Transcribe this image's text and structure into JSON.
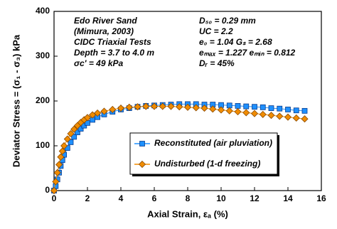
{
  "chart_data": {
    "type": "line",
    "x_label": "Axial Strain, εₐ (%)",
    "y_label": "Deviator Stress = (σ₁ - σ₃)  kPa",
    "xlim": [
      0,
      16
    ],
    "xticks": [
      0,
      2,
      4,
      6,
      8,
      10,
      12,
      14,
      16
    ],
    "ylim": [
      0,
      400
    ],
    "yticks": [
      0,
      100,
      200,
      300,
      400
    ],
    "grid": false,
    "legend_loc": "lower center",
    "annotations": [
      {
        "lines": [
          "Edo River Sand",
          "(Mimura, 2003)",
          "CIDC Triaxial Tests",
          "Depth = 3.7 to 4.0 m",
          "σc' = 49 kPa"
        ]
      },
      {
        "lines": [
          "D₅₀ = 0.29 mm",
          "UC = 2.2",
          "e₀ = 1.04    Gₛ = 2.68",
          "eₘₐₓ = 1.227  eₘᵢₙ = 0.812",
          "Dᵣ = 45%"
        ]
      }
    ],
    "series": [
      {
        "name": "Reconstituted (air pluviation)",
        "color": "#1e90ff",
        "marker": "square",
        "x": [
          0,
          0.1,
          0.2,
          0.3,
          0.4,
          0.5,
          0.6,
          0.8,
          1.0,
          1.2,
          1.4,
          1.6,
          1.8,
          2.0,
          2.3,
          2.6,
          3.0,
          3.5,
          4,
          4.5,
          5,
          5.5,
          6,
          6.5,
          7,
          7.5,
          8,
          8.5,
          9,
          9.5,
          10,
          10.5,
          11,
          11.5,
          12,
          12.5,
          13,
          13.5,
          14,
          14.5,
          15
        ],
        "values": [
          0,
          10,
          25,
          40,
          55,
          68,
          80,
          95,
          108,
          120,
          130,
          138,
          145,
          151,
          158,
          164,
          170,
          176,
          181,
          184,
          187,
          189,
          190,
          191,
          192,
          193,
          193,
          193,
          192,
          192,
          191,
          190,
          189,
          188,
          187,
          186,
          184,
          183,
          181,
          179,
          178
        ]
      },
      {
        "name": "Undisturbed (1-d freezing)",
        "color": "#f08c00",
        "marker": "diamond",
        "x": [
          0,
          0.1,
          0.2,
          0.3,
          0.4,
          0.5,
          0.6,
          0.8,
          1.0,
          1.2,
          1.4,
          1.6,
          1.8,
          2.0,
          2.3,
          2.6,
          3.0,
          3.5,
          4,
          4.5,
          5,
          5.5,
          6,
          6.5,
          7,
          7.5,
          8,
          8.5,
          9,
          9.5,
          10,
          10.5,
          11,
          11.5,
          12,
          12.5,
          13,
          13.5,
          14,
          14.5,
          15
        ],
        "values": [
          0,
          20,
          40,
          58,
          75,
          88,
          100,
          115,
          127,
          137,
          145,
          152,
          158,
          163,
          169,
          173,
          177,
          181,
          184,
          186,
          187,
          188,
          188,
          188,
          188,
          187,
          186,
          185,
          184,
          182,
          180,
          178,
          176,
          174,
          172,
          170,
          168,
          166,
          164,
          162,
          160
        ]
      }
    ]
  }
}
